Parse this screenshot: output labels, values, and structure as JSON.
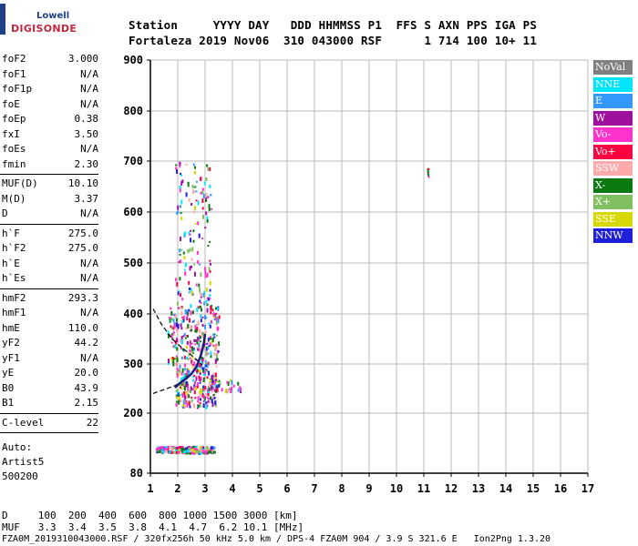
{
  "logo": {
    "top": "Lowell",
    "bottom": "DIGISONDE"
  },
  "header": {
    "line1": "Station     YYYY DAY   DDD HHMMSS P1  FFS S AXN PPS IGA PS",
    "line2": "Fortaleza 2019 Nov06  310 043000 RSF      1 714 100 10+ 11"
  },
  "params_groups": [
    [
      {
        "k": "foF2",
        "v": "3.000"
      },
      {
        "k": "foF1",
        "v": "N/A"
      },
      {
        "k": "foF1p",
        "v": "N/A"
      },
      {
        "k": "foE",
        "v": "N/A"
      },
      {
        "k": "foEp",
        "v": "0.38"
      },
      {
        "k": "fxI",
        "v": "3.50"
      },
      {
        "k": "foEs",
        "v": "N/A"
      },
      {
        "k": "fmin",
        "v": "2.30"
      }
    ],
    [
      {
        "k": "MUF(D)",
        "v": "10.10"
      },
      {
        "k": "M(D)",
        "v": "3.37"
      },
      {
        "k": "D",
        "v": "N/A"
      }
    ],
    [
      {
        "k": "h`F",
        "v": "275.0"
      },
      {
        "k": "h`F2",
        "v": "275.0"
      },
      {
        "k": "h`E",
        "v": "N/A"
      },
      {
        "k": "h`Es",
        "v": "N/A"
      }
    ],
    [
      {
        "k": "hmF2",
        "v": "293.3"
      },
      {
        "k": "hmF1",
        "v": "N/A"
      },
      {
        "k": "hmE",
        "v": "110.0"
      },
      {
        "k": "yF2",
        "v": "44.2"
      },
      {
        "k": "yF1",
        "v": "N/A"
      },
      {
        "k": "yE",
        "v": "20.0"
      },
      {
        "k": "B0",
        "v": "43.9"
      },
      {
        "k": "B1",
        "v": "2.15"
      }
    ],
    [
      {
        "k": "C-level",
        "v": "22"
      }
    ]
  ],
  "auto": {
    "line1": "Auto:",
    "line2": "Artist5",
    "line3": "500200"
  },
  "legend": [
    {
      "label": "NoVal",
      "bg": "#808080",
      "fg": "#ffffff"
    },
    {
      "label": "NNE",
      "bg": "#00e6ff",
      "fg": "#ffffff"
    },
    {
      "label": "E",
      "bg": "#3399ff",
      "fg": "#ffffff"
    },
    {
      "label": "W",
      "bg": "#a0109e",
      "fg": "#ffffff"
    },
    {
      "label": "Vo-",
      "bg": "#ff33cc",
      "fg": "#ffffff"
    },
    {
      "label": "Vo+",
      "bg": "#ff0040",
      "fg": "#ffffff"
    },
    {
      "label": "SSW",
      "bg": "#ffaaaa",
      "fg": "#ffffff"
    },
    {
      "label": "X-",
      "bg": "#0a7a10",
      "fg": "#ffffff"
    },
    {
      "label": "X+",
      "bg": "#80c060",
      "fg": "#ffffff"
    },
    {
      "label": "SSE",
      "bg": "#d8d800",
      "fg": "#ffffff"
    },
    {
      "label": "NNW",
      "bg": "#2020d8",
      "fg": "#ffffff"
    }
  ],
  "footer": {
    "line1": "D     100  200  400  600  800 1000 1500 3000 [km]",
    "line2": "MUF   3.3  3.4  3.5  3.8  4.1  4.7  6.2 10.1 [MHz]",
    "line3": "FZA0M_2019310043000.RSF / 320fx256h 50 kHz 5.0 km / DPS-4 FZA0M 904 / 3.9 S 321.6 E   Ion2Png 1.3.20"
  },
  "chart_data": {
    "type": "scatter",
    "xlim": [
      1,
      17
    ],
    "ylim": [
      80,
      900
    ],
    "xticks": [
      1,
      2,
      3,
      4,
      5,
      6,
      7,
      8,
      9,
      10,
      11,
      12,
      13,
      14,
      15,
      16,
      17
    ],
    "yticks": [
      80,
      200,
      300,
      400,
      500,
      600,
      700,
      800,
      900
    ],
    "grid": true,
    "legend_position": "right",
    "trace_X_profile": [
      {
        "x": 1.1,
        "y": 410
      },
      {
        "x": 1.4,
        "y": 380
      },
      {
        "x": 1.8,
        "y": 350
      },
      {
        "x": 2.1,
        "y": 335
      },
      {
        "x": 2.4,
        "y": 322
      },
      {
        "x": 2.7,
        "y": 308
      },
      {
        "x": 2.9,
        "y": 298
      }
    ],
    "trace_O_profile": [
      {
        "x": 1.1,
        "y": 240
      },
      {
        "x": 1.5,
        "y": 248
      },
      {
        "x": 1.9,
        "y": 256
      },
      {
        "x": 2.2,
        "y": 266
      },
      {
        "x": 2.5,
        "y": 278
      },
      {
        "x": 2.7,
        "y": 295
      },
      {
        "x": 2.85,
        "y": 320
      },
      {
        "x": 2.95,
        "y": 345
      }
    ],
    "trace_O_echo": [
      {
        "x": 1.9,
        "y": 252
      },
      {
        "x": 2.1,
        "y": 262
      },
      {
        "x": 2.3,
        "y": 270
      },
      {
        "x": 2.5,
        "y": 280
      },
      {
        "x": 2.7,
        "y": 296
      },
      {
        "x": 2.85,
        "y": 318
      },
      {
        "x": 2.95,
        "y": 340
      },
      {
        "x": 3.0,
        "y": 360
      }
    ],
    "clusters": [
      {
        "name": "F-trace low",
        "x": [
          1.9,
          3.4
        ],
        "y": [
          215,
          300
        ],
        "n": 220
      },
      {
        "name": "F-trace upper",
        "x": [
          1.6,
          3.5
        ],
        "y": [
          300,
          420
        ],
        "n": 260
      },
      {
        "name": "spread",
        "x": [
          1.7,
          3.3
        ],
        "y": [
          420,
          700
        ],
        "n": 150
      },
      {
        "name": "E-layer",
        "x": [
          1.2,
          3.3
        ],
        "y": [
          122,
          135
        ],
        "n": 140
      },
      {
        "name": "tail",
        "x": [
          3.0,
          4.3
        ],
        "y": [
          245,
          270
        ],
        "n": 40
      },
      {
        "name": "isolated",
        "x": [
          11.1,
          11.15
        ],
        "y": [
          668,
          690
        ],
        "n": 4
      }
    ]
  }
}
